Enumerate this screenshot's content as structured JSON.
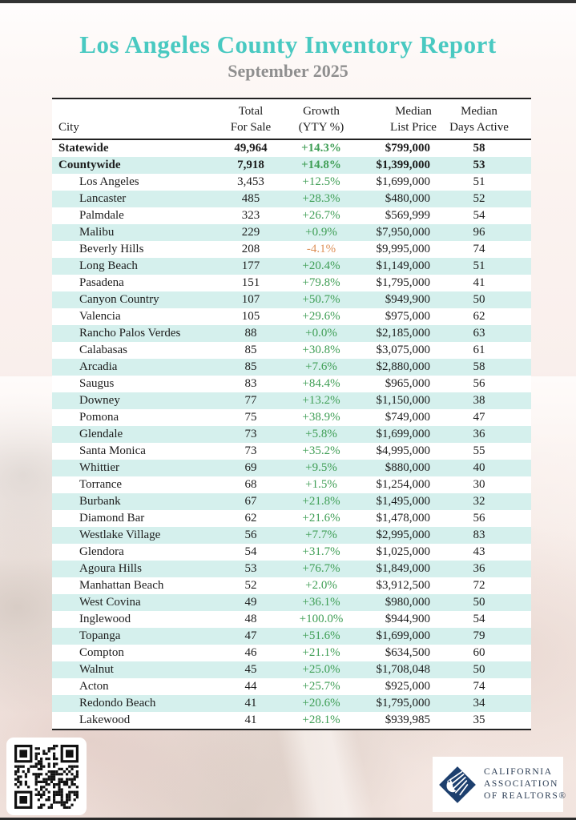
{
  "page": {
    "title": "Los Angeles County Inventory Report",
    "subtitle": "September 2025"
  },
  "table": {
    "header": [
      {
        "line1": "",
        "line2": "City"
      },
      {
        "line1": "Total",
        "line2": "For Sale"
      },
      {
        "line1": "Growth",
        "line2": "(YTY %)"
      },
      {
        "line1": "Median",
        "line2": "List Price"
      },
      {
        "line1": "Median",
        "line2": "Days Active"
      }
    ],
    "rows": [
      {
        "city": "Statewide",
        "total": "49,964",
        "growth": "+14.3%",
        "price": "$799,000",
        "days": "58",
        "emphasis": true,
        "indent": false
      },
      {
        "city": "Countywide",
        "total": "7,918",
        "growth": "+14.8%",
        "price": "$1,399,000",
        "days": "53",
        "emphasis": true,
        "indent": false
      },
      {
        "city": "Los Angeles",
        "total": "3,453",
        "growth": "+12.5%",
        "price": "$1,699,000",
        "days": "51",
        "emphasis": false,
        "indent": true
      },
      {
        "city": "Lancaster",
        "total": "485",
        "growth": "+28.3%",
        "price": "$480,000",
        "days": "52",
        "emphasis": false,
        "indent": true
      },
      {
        "city": "Palmdale",
        "total": "323",
        "growth": "+26.7%",
        "price": "$569,999",
        "days": "54",
        "emphasis": false,
        "indent": true
      },
      {
        "city": "Malibu",
        "total": "229",
        "growth": "+0.9%",
        "price": "$7,950,000",
        "days": "96",
        "emphasis": false,
        "indent": true
      },
      {
        "city": "Beverly Hills",
        "total": "208",
        "growth": "-4.1%",
        "price": "$9,995,000",
        "days": "74",
        "emphasis": false,
        "indent": true
      },
      {
        "city": "Long Beach",
        "total": "177",
        "growth": "+20.4%",
        "price": "$1,149,000",
        "days": "51",
        "emphasis": false,
        "indent": true
      },
      {
        "city": "Pasadena",
        "total": "151",
        "growth": "+79.8%",
        "price": "$1,795,000",
        "days": "41",
        "emphasis": false,
        "indent": true
      },
      {
        "city": "Canyon Country",
        "total": "107",
        "growth": "+50.7%",
        "price": "$949,900",
        "days": "50",
        "emphasis": false,
        "indent": true
      },
      {
        "city": "Valencia",
        "total": "105",
        "growth": "+29.6%",
        "price": "$975,000",
        "days": "62",
        "emphasis": false,
        "indent": true
      },
      {
        "city": "Rancho Palos Verdes",
        "total": "88",
        "growth": "+0.0%",
        "price": "$2,185,000",
        "days": "63",
        "emphasis": false,
        "indent": true
      },
      {
        "city": "Calabasas",
        "total": "85",
        "growth": "+30.8%",
        "price": "$3,075,000",
        "days": "61",
        "emphasis": false,
        "indent": true
      },
      {
        "city": "Arcadia",
        "total": "85",
        "growth": "+7.6%",
        "price": "$2,880,000",
        "days": "58",
        "emphasis": false,
        "indent": true
      },
      {
        "city": "Saugus",
        "total": "83",
        "growth": "+84.4%",
        "price": "$965,000",
        "days": "56",
        "emphasis": false,
        "indent": true
      },
      {
        "city": "Downey",
        "total": "77",
        "growth": "+13.2%",
        "price": "$1,150,000",
        "days": "38",
        "emphasis": false,
        "indent": true
      },
      {
        "city": "Pomona",
        "total": "75",
        "growth": "+38.9%",
        "price": "$749,000",
        "days": "47",
        "emphasis": false,
        "indent": true
      },
      {
        "city": "Glendale",
        "total": "73",
        "growth": "+5.8%",
        "price": "$1,699,000",
        "days": "36",
        "emphasis": false,
        "indent": true
      },
      {
        "city": "Santa Monica",
        "total": "73",
        "growth": "+35.2%",
        "price": "$4,995,000",
        "days": "55",
        "emphasis": false,
        "indent": true
      },
      {
        "city": "Whittier",
        "total": "69",
        "growth": "+9.5%",
        "price": "$880,000",
        "days": "40",
        "emphasis": false,
        "indent": true
      },
      {
        "city": "Torrance",
        "total": "68",
        "growth": "+1.5%",
        "price": "$1,254,000",
        "days": "30",
        "emphasis": false,
        "indent": true
      },
      {
        "city": "Burbank",
        "total": "67",
        "growth": "+21.8%",
        "price": "$1,495,000",
        "days": "32",
        "emphasis": false,
        "indent": true
      },
      {
        "city": "Diamond Bar",
        "total": "62",
        "growth": "+21.6%",
        "price": "$1,478,000",
        "days": "56",
        "emphasis": false,
        "indent": true
      },
      {
        "city": "Westlake Village",
        "total": "56",
        "growth": "+7.7%",
        "price": "$2,995,000",
        "days": "83",
        "emphasis": false,
        "indent": true
      },
      {
        "city": "Glendora",
        "total": "54",
        "growth": "+31.7%",
        "price": "$1,025,000",
        "days": "43",
        "emphasis": false,
        "indent": true
      },
      {
        "city": "Agoura Hills",
        "total": "53",
        "growth": "+76.7%",
        "price": "$1,849,000",
        "days": "36",
        "emphasis": false,
        "indent": true
      },
      {
        "city": "Manhattan Beach",
        "total": "52",
        "growth": "+2.0%",
        "price": "$3,912,500",
        "days": "72",
        "emphasis": false,
        "indent": true
      },
      {
        "city": "West Covina",
        "total": "49",
        "growth": "+36.1%",
        "price": "$980,000",
        "days": "50",
        "emphasis": false,
        "indent": true
      },
      {
        "city": "Inglewood",
        "total": "48",
        "growth": "+100.0%",
        "price": "$944,900",
        "days": "54",
        "emphasis": false,
        "indent": true
      },
      {
        "city": "Topanga",
        "total": "47",
        "growth": "+51.6%",
        "price": "$1,699,000",
        "days": "79",
        "emphasis": false,
        "indent": true
      },
      {
        "city": "Compton",
        "total": "46",
        "growth": "+21.1%",
        "price": "$634,500",
        "days": "60",
        "emphasis": false,
        "indent": true
      },
      {
        "city": "Walnut",
        "total": "45",
        "growth": "+25.0%",
        "price": "$1,708,048",
        "days": "50",
        "emphasis": false,
        "indent": true
      },
      {
        "city": "Acton",
        "total": "44",
        "growth": "+25.7%",
        "price": "$925,000",
        "days": "74",
        "emphasis": false,
        "indent": true
      },
      {
        "city": "Redondo Beach",
        "total": "41",
        "growth": "+20.6%",
        "price": "$1,795,000",
        "days": "34",
        "emphasis": false,
        "indent": true
      },
      {
        "city": "Lakewood",
        "total": "41",
        "growth": "+28.1%",
        "price": "$939,985",
        "days": "35",
        "emphasis": false,
        "indent": true
      }
    ]
  },
  "footer": {
    "logo_lines": [
      "CALIFORNIA",
      "ASSOCIATION",
      "OF REALTORS®"
    ]
  },
  "colors": {
    "accent_teal": "#49c9c1",
    "subtitle_gray": "#8f8f8f",
    "row_stripe_teal": "#d5f0ed",
    "growth_positive": "#3f9e55",
    "growth_negative": "#dd9058",
    "logo_navy": "#1d3f6e",
    "text": "#1c1c1c"
  }
}
